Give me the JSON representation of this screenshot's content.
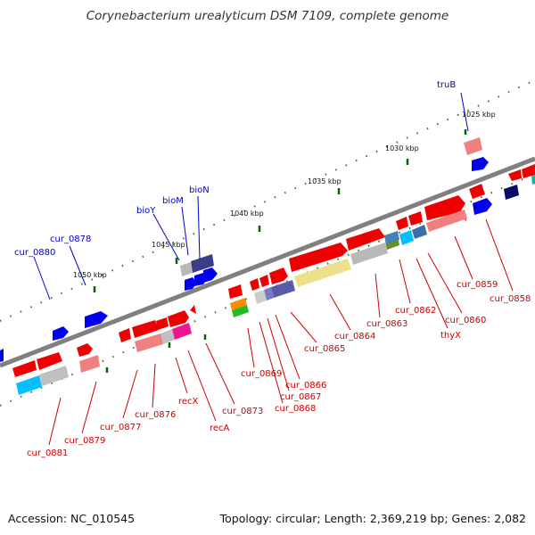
{
  "title": "Corynebacterium urealyticum DSM 7109, complete genome",
  "footer": {
    "accession": "Accession: NC_010545",
    "summary": "Topology: circular; Length: 2,369,219 bp; Genes: 2,082"
  },
  "colors": {
    "backbone": "#808080",
    "forward_gene_label": "#0000cc",
    "reverse_gene_label": "#cc0000",
    "tick": "#006600"
  },
  "ticks": [
    "1025 kbp",
    "1030 kbp",
    "1035 kbp",
    "1040 kbp",
    "1045 kbp",
    "1050 kbp"
  ],
  "labels": {
    "forward": [
      "truB",
      "bioN",
      "bioM",
      "bioY",
      "cur_0878",
      "cur_0880"
    ],
    "reverse": [
      "cur_0858",
      "cur_0859",
      "cur_0860",
      "thyX",
      "cur_0862",
      "cur_0863",
      "cur_0864",
      "cur_0865",
      "cur_0866",
      "cur_0867",
      "cur_0868",
      "cur_0869",
      "cur_0873",
      "recA",
      "recX",
      "cur_0876",
      "cur_0877",
      "cur_0879",
      "cur_0881"
    ]
  }
}
